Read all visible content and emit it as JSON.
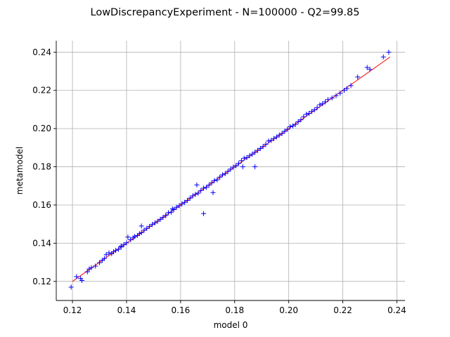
{
  "chart_data": {
    "type": "scatter",
    "title": "LowDiscrepancyExperiment - N=100000 - Q2=99.85",
    "xlabel": "model 0",
    "ylabel": "metamodel",
    "xlim": [
      0.114,
      0.243
    ],
    "ylim": [
      0.11,
      0.246
    ],
    "xticks": [
      0.12,
      0.14,
      0.16,
      0.18,
      0.2,
      0.22,
      0.24
    ],
    "yticks": [
      0.12,
      0.14,
      0.16,
      0.18,
      0.2,
      0.22,
      0.24
    ],
    "tick_labels_x": [
      "0.12",
      "0.14",
      "0.16",
      "0.18",
      "0.20",
      "0.22",
      "0.24"
    ],
    "tick_labels_y": [
      "0.12",
      "0.14",
      "0.16",
      "0.18",
      "0.20",
      "0.22",
      "0.24"
    ],
    "grid": true,
    "marker": "+",
    "marker_color": "#0000ff",
    "reference_line": {
      "x": [
        0.12,
        0.2375
      ],
      "y": [
        0.12,
        0.2375
      ],
      "color": "#ff0000"
    },
    "series": [
      {
        "x": [
          0.1195,
          0.1215,
          0.123,
          0.1235,
          0.1255,
          0.1262,
          0.127,
          0.1285,
          0.13,
          0.131,
          0.1318,
          0.1325,
          0.1335,
          0.1345,
          0.1352,
          0.136,
          0.137,
          0.138,
          0.139,
          0.14,
          0.1405,
          0.1415,
          0.1425,
          0.143,
          0.144,
          0.1448,
          0.1455,
          0.1465,
          0.1475,
          0.1485,
          0.1495,
          0.1505,
          0.1515,
          0.1525,
          0.1535,
          0.1545,
          0.1555,
          0.1565,
          0.1575,
          0.1585,
          0.1595,
          0.1605,
          0.1615,
          0.1625,
          0.1635,
          0.1645,
          0.1655,
          0.1665,
          0.1675,
          0.1685,
          0.1695,
          0.1705,
          0.1715,
          0.1725,
          0.1735,
          0.1745,
          0.1755,
          0.1765,
          0.1775,
          0.1785,
          0.1795,
          0.1805,
          0.1815,
          0.1825,
          0.1835,
          0.1845,
          0.1855,
          0.1865,
          0.1875,
          0.1885,
          0.1895,
          0.1905,
          0.1915,
          0.1925,
          0.1935,
          0.1945,
          0.1955,
          0.1965,
          0.1975,
          0.1985,
          0.1995,
          0.2005,
          0.2015,
          0.2025,
          0.2035,
          0.2045,
          0.2055,
          0.2065,
          0.2075,
          0.2085,
          0.2095,
          0.2105,
          0.2115,
          0.2125,
          0.2135,
          0.2145,
          0.216,
          0.2175,
          0.219,
          0.2205,
          0.2215,
          0.223,
          0.2255,
          0.229,
          0.23,
          0.235,
          0.237,
          0.1455,
          0.1545,
          0.166,
          0.1685,
          0.172,
          0.183,
          0.1875,
          0.138,
          0.157
        ],
        "y": [
          0.117,
          0.1225,
          0.1215,
          0.1205,
          0.125,
          0.1265,
          0.1272,
          0.128,
          0.1298,
          0.131,
          0.132,
          0.134,
          0.135,
          0.1345,
          0.1355,
          0.1362,
          0.1368,
          0.138,
          0.1392,
          0.1402,
          0.1432,
          0.1418,
          0.1428,
          0.1435,
          0.144,
          0.145,
          0.149,
          0.1468,
          0.1478,
          0.1488,
          0.1498,
          0.1506,
          0.1515,
          0.1525,
          0.1535,
          0.1545,
          0.156,
          0.1562,
          0.1576,
          0.1588,
          0.1596,
          0.1606,
          0.1614,
          0.1624,
          0.1636,
          0.1648,
          0.1656,
          0.1662,
          0.1676,
          0.1688,
          0.1692,
          0.1704,
          0.1716,
          0.1728,
          0.1732,
          0.1746,
          0.1758,
          0.1764,
          0.1776,
          0.1788,
          0.1798,
          0.1806,
          0.1818,
          0.1832,
          0.1845,
          0.1848,
          0.1858,
          0.1866,
          0.1876,
          0.1886,
          0.1896,
          0.1906,
          0.1918,
          0.1935,
          0.1938,
          0.1948,
          0.1956,
          0.1966,
          0.1974,
          0.1986,
          0.1996,
          0.201,
          0.2014,
          0.2022,
          0.2036,
          0.2046,
          0.2062,
          0.2075,
          0.208,
          0.209,
          0.2098,
          0.211,
          0.2125,
          0.213,
          0.214,
          0.2152,
          0.216,
          0.2172,
          0.2185,
          0.22,
          0.221,
          0.2225,
          0.227,
          0.232,
          0.231,
          0.2375,
          0.24,
          0.1455,
          0.1545,
          0.1705,
          0.1555,
          0.1665,
          0.18,
          0.18,
          0.1385,
          0.158
        ]
      }
    ]
  }
}
